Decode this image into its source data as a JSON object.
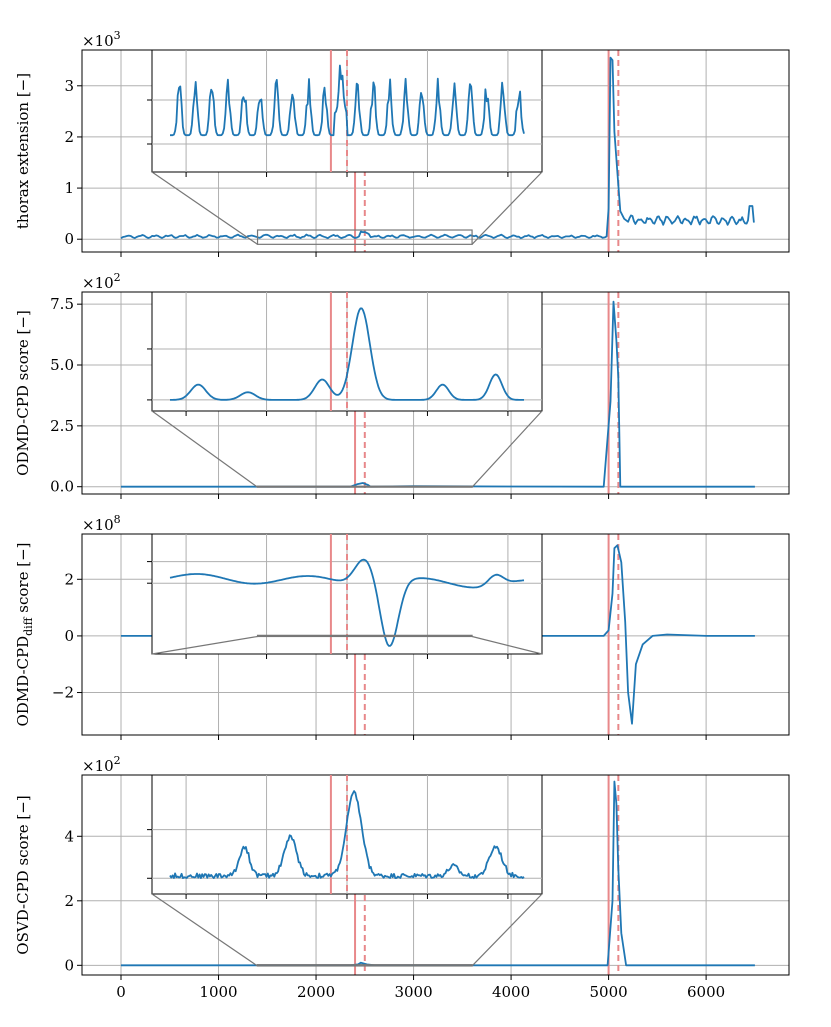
{
  "chart_data": {
    "type": "line",
    "shared_x": {
      "ticks": [
        0,
        1000,
        2000,
        3000,
        4000,
        5000,
        6000
      ],
      "tick_labels": [
        "0",
        "1000",
        "2000",
        "3000",
        "4000",
        "5000",
        "6000"
      ],
      "xlim": [
        -400,
        6850
      ]
    },
    "change_points": {
      "true": [
        2400,
        5000
      ],
      "detected": [
        2500,
        5100
      ],
      "colors": {
        "line": "#1f77b4",
        "change_point": "#e8888a",
        "connector": "#777777",
        "grid": "#b0b0b0"
      }
    },
    "zoom_window": [
      1400,
      3600
    ],
    "panels": [
      {
        "ylabel": "thorax extension [−]",
        "multiplier_base": "×10",
        "multiplier_exp": "3",
        "ylim": [
          -0.25,
          3.7
        ],
        "yticks": [
          0,
          1,
          2,
          3
        ],
        "ytick_labels": [
          "0",
          "1",
          "2",
          "3"
        ],
        "series": [
          {
            "name": "thorax extension",
            "x": [
              0,
              600,
              1200,
              1800,
              2400,
              2460,
              2550,
              3000,
              3600,
              4200,
              4800,
              4950,
              5000,
              5020,
              5040,
              5060,
              5090,
              5120,
              5160,
              5200,
              5400,
              5800,
              6200,
              6450,
              6470,
              6500
            ],
            "y": [
              0.0,
              0.04,
              0.02,
              0.03,
              0.05,
              0.16,
              0.09,
              0.07,
              0.05,
              0.06,
              0.08,
              0.1,
              0.6,
              3.55,
              3.5,
              2.1,
              1.3,
              0.55,
              0.4,
              0.32,
              0.28,
              0.32,
              0.35,
              0.65,
              0.3,
              0.28
            ]
          }
        ],
        "inset": {
          "ylim": [
            -0.05,
            0.2
          ],
          "yticks": [
            0.0,
            0.1
          ]
        }
      },
      {
        "ylabel": "ODMD-CPD score [−]",
        "multiplier_base": "×10",
        "multiplier_exp": "2",
        "ylim": [
          -0.3,
          8.0
        ],
        "yticks": [
          0.0,
          2.5,
          5.0,
          7.5
        ],
        "ytick_labels": [
          "0.0",
          "2.5",
          "5.0",
          "7.5"
        ],
        "series": [
          {
            "name": "ODMD-CPD score",
            "x": [
              0,
              2350,
              2420,
              2480,
              2530,
              2560,
              3000,
              4000,
              4950,
              5020,
              5050,
              5080,
              5100,
              5120,
              5200,
              6500
            ],
            "y": [
              0.0,
              0.0,
              0.1,
              0.15,
              0.08,
              0.0,
              0.02,
              0.01,
              0.0,
              3.5,
              7.6,
              6.0,
              4.5,
              0.0,
              0.0,
              0.0
            ]
          }
        ],
        "inset": {
          "ylim": [
            -0.01,
            0.2
          ],
          "yticks": [
            0.0,
            0.1
          ]
        }
      },
      {
        "ylabel": "ODMD-CPD",
        "ylabel_subscript": "diff",
        "ylabel_suffix": " score [−]",
        "multiplier_base": "×10",
        "multiplier_exp": "8",
        "ylim": [
          -3.5,
          3.6
        ],
        "yticks": [
          -2,
          0,
          2
        ],
        "ytick_labels": [
          "−2",
          "0",
          "2"
        ],
        "series": [
          {
            "name": "ODMD-CPD diff score",
            "x": [
              0,
              4950,
              5000,
              5040,
              5060,
              5090,
              5130,
              5170,
              5200,
              5240,
              5280,
              5350,
              5450,
              5600,
              6000,
              6500
            ],
            "y": [
              0.0,
              0.0,
              0.2,
              1.5,
              3.1,
              3.2,
              2.6,
              0.5,
              -2.0,
              -3.1,
              -1.0,
              -0.3,
              0.0,
              0.05,
              0.0,
              0.0
            ]
          }
        ],
        "inset": {
          "ylim": [
            -0.06,
            0.04
          ],
          "yticks": [
            0.0,
            0.02
          ]
        }
      },
      {
        "ylabel": "OSVD-CPD score [−]",
        "multiplier_base": "×10",
        "multiplier_exp": "2",
        "ylim": [
          -0.3,
          5.9
        ],
        "yticks": [
          0,
          2,
          4
        ],
        "ytick_labels": [
          "0",
          "2",
          "4"
        ],
        "series": [
          {
            "name": "OSVD-CPD score",
            "x": [
              0,
              2350,
              2430,
              2460,
              2520,
              2600,
              3000,
              4000,
              4990,
              5040,
              5060,
              5080,
              5100,
              5130,
              5180,
              6500
            ],
            "y": [
              0.0,
              0.0,
              0.03,
              0.08,
              0.03,
              0.0,
              0.0,
              0.0,
              0.0,
              2.0,
              5.7,
              5.0,
              3.0,
              1.0,
              0.0,
              0.0
            ]
          }
        ],
        "inset": {
          "ylim": [
            -0.01,
            0.1
          ],
          "yticks": [
            0.0,
            0.05
          ]
        }
      }
    ]
  }
}
